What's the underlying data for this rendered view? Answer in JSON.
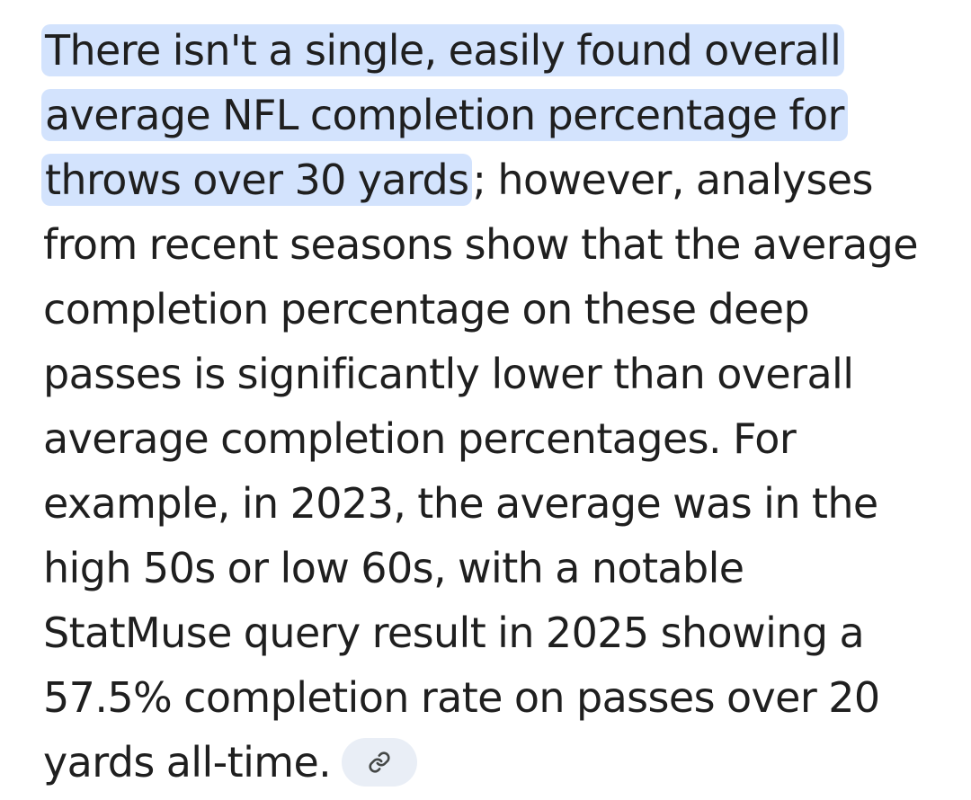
{
  "answer": {
    "highlighted_text": "There isn't a single, easily found overall average NFL completion percentage for throws over 30 yards",
    "body_text": "; however, analyses from recent seasons show that the average completion percentage on these deep passes is significantly lower than overall average completion percentages. For example, in 2023, the average was in the high 50s or low 60s, with a notable StatMuse query result in 2025 showing a 57.5% completion rate on passes over 20 yards all-time.",
    "source_chip_icon": "link-icon"
  },
  "colors": {
    "text": "#1f1f1f",
    "highlight": "#d3e3fd",
    "chip_background": "#e9eef6",
    "chip_icon": "#444746"
  }
}
